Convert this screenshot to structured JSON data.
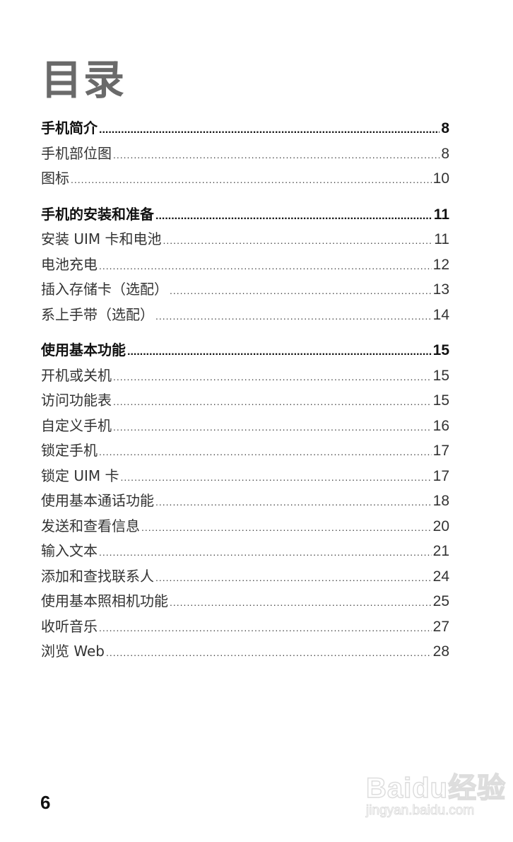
{
  "title": "目录",
  "sections": [
    {
      "heading": {
        "label": "手机简介",
        "page": "8"
      },
      "items": [
        {
          "label": "手机部位图",
          "page": "8"
        },
        {
          "label": "图标",
          "page": "10"
        }
      ]
    },
    {
      "heading": {
        "label": "手机的安装和准备",
        "page": "11"
      },
      "items": [
        {
          "label": "安装 UIM 卡和电池",
          "page": "11"
        },
        {
          "label": "电池充电",
          "page": "12"
        },
        {
          "label": "插入存储卡（选配）",
          "page": "13"
        },
        {
          "label": "系上手带（选配）",
          "page": "14"
        }
      ]
    },
    {
      "heading": {
        "label": "使用基本功能",
        "page": "15"
      },
      "items": [
        {
          "label": "开机或关机",
          "page": "15"
        },
        {
          "label": "访问功能表",
          "page": "15"
        },
        {
          "label": "自定义手机",
          "page": "16"
        },
        {
          "label": "锁定手机",
          "page": "17"
        },
        {
          "label": "锁定 UIM 卡",
          "page": "17"
        },
        {
          "label": "使用基本通话功能",
          "page": "18"
        },
        {
          "label": "发送和查看信息",
          "page": "20"
        },
        {
          "label": "输入文本",
          "page": "21"
        },
        {
          "label": "添加和查找联系人",
          "page": "24"
        },
        {
          "label": "使用基本照相机功能",
          "page": "25"
        },
        {
          "label": "收听音乐",
          "page": "27"
        },
        {
          "label": "浏览 Web",
          "page": "28"
        }
      ]
    }
  ],
  "page_number": "6",
  "watermark": {
    "brand": "Baidu经验",
    "url": "jingyan.baidu.com"
  }
}
